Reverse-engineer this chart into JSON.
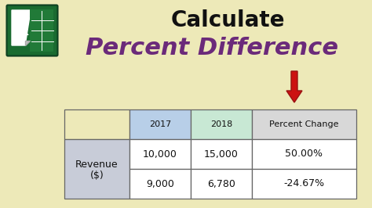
{
  "bg_color": "#ede9b8",
  "title_text": "Calculate",
  "title_color": "#111111",
  "title_fontsize": 20,
  "subtitle_text": "Percent Difference",
  "subtitle_color": "#6b2a7a",
  "subtitle_fontsize": 22,
  "arrow_color": "#cc1111",
  "col_headers": [
    "2017",
    "2018",
    "Percent Change"
  ],
  "col_header_colors": [
    "#b8cfe8",
    "#c8e8d4",
    "#d8d8d8"
  ],
  "row_label_line1": "Revenue",
  "row_label_line2": "($)",
  "row_label_color": "#c8ccd8",
  "row_data": [
    [
      "10,000",
      "15,000",
      "50.00%"
    ],
    [
      "9,000",
      "6,780",
      "-24.67%"
    ]
  ],
  "table_bg": "#ffffff",
  "table_border_color": "#666666",
  "excel_dark_green": "#1a6b30",
  "excel_mid_green": "#217a38",
  "excel_light_green": "#2ea84e"
}
